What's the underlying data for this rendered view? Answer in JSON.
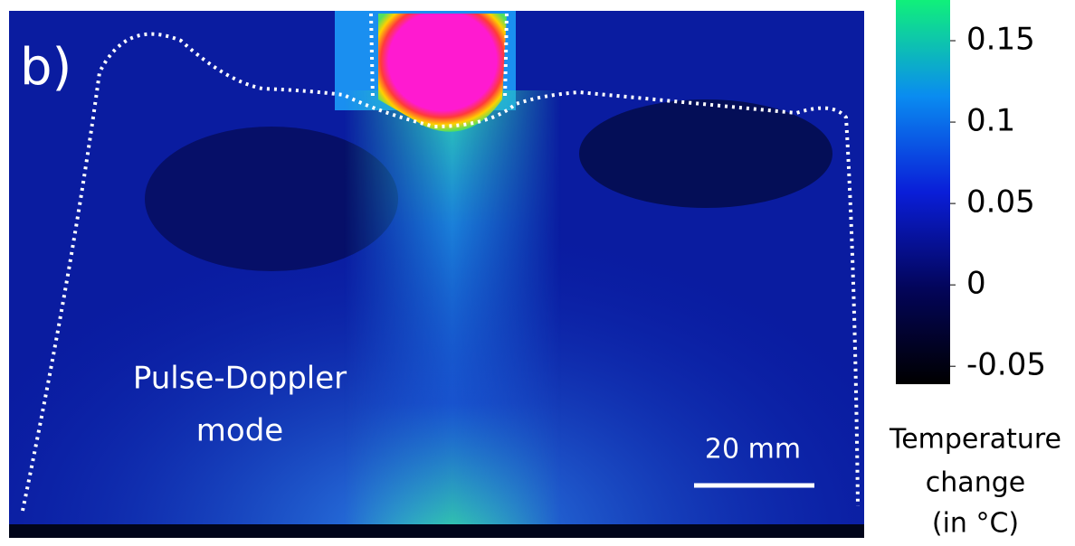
{
  "chart_data": {
    "type": "heatmap",
    "panel_label": "b)",
    "annotation": [
      "Pulse-Doppler",
      "mode"
    ],
    "scale_bar_label": "20 mm",
    "colorbar": {
      "label": [
        "Temperature",
        "change",
        "(in °C)"
      ],
      "lim": [
        -0.061,
        0.175
      ],
      "ticks": [
        -0.05,
        0,
        0.05,
        0.1,
        0.15
      ]
    }
  }
}
